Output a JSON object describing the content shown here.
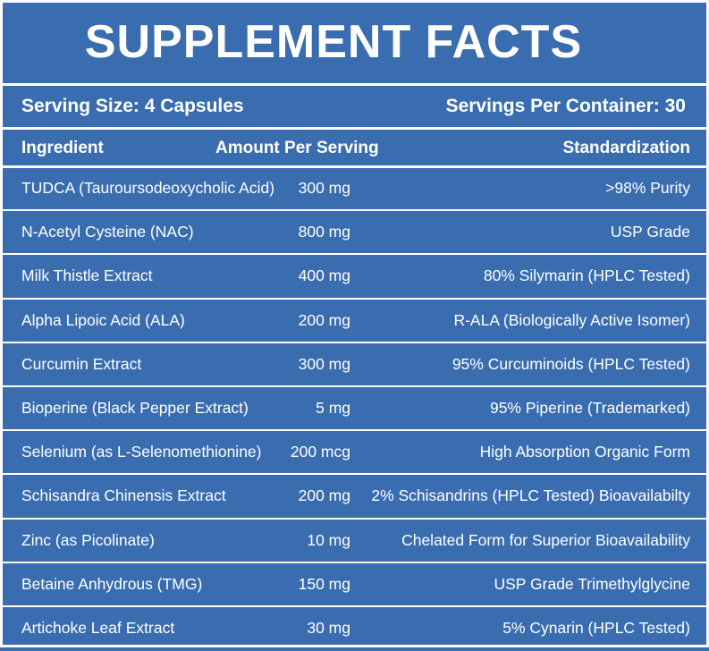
{
  "title": "SUPPLEMENT FACTS",
  "serving": {
    "size": "Serving Size: 4 Capsules",
    "per_container": "Servings Per Container: 30"
  },
  "columns": {
    "ingredient": "Ingredient",
    "amount": "Amount Per Serving",
    "standardization": "Standardization"
  },
  "rows": [
    {
      "ingredient": "TUDCA (Tauroursodeoxycholic Acid)",
      "amount": "300 mg",
      "standardization": ">98% Purity"
    },
    {
      "ingredient": "N-Acetyl Cysteine (NAC)",
      "amount": "800 mg",
      "standardization": "USP Grade"
    },
    {
      "ingredient": "Milk Thistle Extract",
      "amount": "400 mg",
      "standardization": "80% Silymarin (HPLC Tested)"
    },
    {
      "ingredient": "Alpha Lipoic Acid (ALA)",
      "amount": "200 mg",
      "standardization": "R-ALA (Biologically Active Isomer)"
    },
    {
      "ingredient": "Curcumin Extract",
      "amount": "300 mg",
      "standardization": "95% Curcuminoids (HPLC Tested)"
    },
    {
      "ingredient": "Bioperine (Black Pepper Extract)",
      "amount": "5 mg",
      "standardization": "95% Piperine (Trademarked)"
    },
    {
      "ingredient": "Selenium (as L-Selenomethionine)",
      "amount": "200 mcg",
      "standardization": "High Absorption Organic Form"
    },
    {
      "ingredient": "Schisandra Chinensis Extract",
      "amount": "200 mg",
      "standardization": "2% Schisandrins (HPLC Tested) Bioavailabilty"
    },
    {
      "ingredient": "Zinc (as Picolinate)",
      "amount": "10 mg",
      "standardization": "Chelated Form for Superior Bioavailability"
    },
    {
      "ingredient": "Betaine Anhydrous (TMG)",
      "amount": "150 mg",
      "standardization": "USP Grade Trimethylglycine"
    },
    {
      "ingredient": "Artichoke Leaf Extract",
      "amount": "30 mg",
      "standardization": "5% Cynarin (HPLC Tested)"
    }
  ],
  "colors": {
    "background": "#3a6db0",
    "text": "#ffffff",
    "rules": "#ffffff"
  }
}
